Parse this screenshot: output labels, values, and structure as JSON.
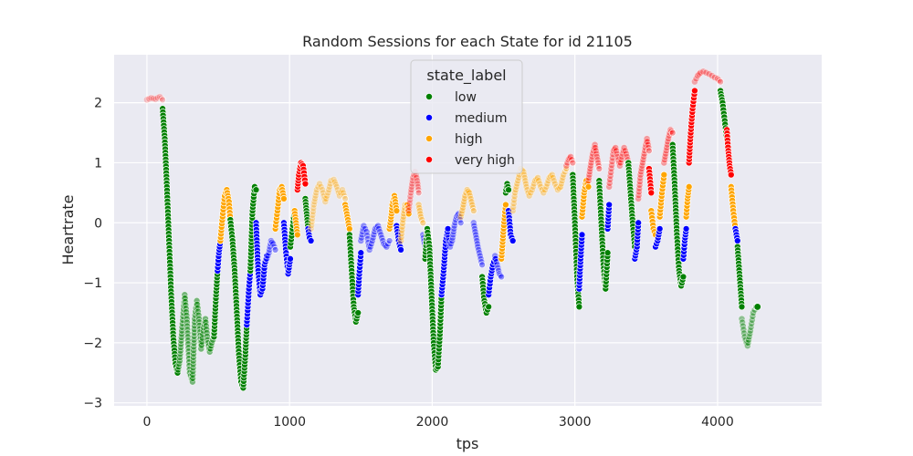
{
  "chart_data": {
    "type": "scatter",
    "title": "Random Sessions for each State for id 21105",
    "xlabel": "tps",
    "ylabel": "Heartrate",
    "xlim": [
      -230,
      4730
    ],
    "ylim": [
      -3.05,
      2.8
    ],
    "xticks": [
      0,
      1000,
      2000,
      3000,
      4000
    ],
    "yticks": [
      2,
      1,
      0,
      -1,
      -2,
      -3
    ],
    "xtick_labels": [
      "0",
      "1000",
      "2000",
      "3000",
      "4000"
    ],
    "ytick_labels": [
      "2",
      "1",
      "0",
      "−1",
      "−2",
      "−3"
    ],
    "grid": true,
    "background": "#eaeaf2",
    "legend": {
      "title": "state_label",
      "placement": "top-center",
      "entries": [
        {
          "label": "low",
          "color": "#008000"
        },
        {
          "label": "medium",
          "color": "#0000ff"
        },
        {
          "label": "high",
          "color": "#ffa500"
        },
        {
          "label": "very high",
          "color": "#ff0000"
        }
      ]
    },
    "series": [
      {
        "state": "very high",
        "alpha": 0.2,
        "x": [
          0,
          30,
          60,
          90,
          110
        ],
        "y": [
          2.05,
          2.08,
          2.06,
          2.1,
          2.05
        ]
      },
      {
        "state": "low",
        "alpha": 1,
        "x": [
          110,
          125,
          140,
          155,
          170,
          185,
          200,
          215
        ],
        "y": [
          1.9,
          1.4,
          0.6,
          -0.3,
          -1.2,
          -1.9,
          -2.35,
          -2.5
        ]
      },
      {
        "state": "low",
        "alpha": 0.5,
        "x": [
          215,
          230,
          245,
          265,
          280,
          300,
          320,
          335,
          350,
          365,
          380,
          395,
          410,
          425,
          440,
          455,
          470
        ],
        "y": [
          -2.5,
          -2.3,
          -1.8,
          -1.2,
          -1.6,
          -2.5,
          -2.65,
          -1.6,
          -1.3,
          -1.6,
          -2.1,
          -1.8,
          -1.6,
          -1.95,
          -2.15,
          -2.0,
          -1.9
        ]
      },
      {
        "state": "low",
        "alpha": 1,
        "x": [
          470,
          485,
          495
        ],
        "y": [
          -1.9,
          -1.2,
          -0.8
        ]
      },
      {
        "state": "medium",
        "alpha": 1,
        "x": [
          495,
          505,
          515
        ],
        "y": [
          -0.8,
          -0.5,
          -0.3
        ]
      },
      {
        "state": "high",
        "alpha": 1,
        "x": [
          515,
          530,
          545,
          560,
          575,
          585
        ],
        "y": [
          -0.3,
          0.1,
          0.45,
          0.55,
          0.35,
          0.05
        ]
      },
      {
        "state": "low",
        "alpha": 1,
        "x": [
          585,
          600,
          615,
          630,
          645,
          660,
          675,
          690,
          700
        ],
        "y": [
          0.05,
          -0.3,
          -0.8,
          -1.5,
          -2.2,
          -2.65,
          -2.75,
          -2.2,
          -1.7
        ]
      },
      {
        "state": "medium",
        "alpha": 1,
        "x": [
          700,
          715,
          725
        ],
        "y": [
          -1.7,
          -1.1,
          -0.8
        ]
      },
      {
        "state": "low",
        "alpha": 1,
        "x": [
          725,
          740,
          755,
          765
        ],
        "y": [
          -0.8,
          0.2,
          0.6,
          0.55
        ]
      },
      {
        "state": "medium",
        "alpha": 1,
        "x": [
          765,
          780,
          795,
          810,
          825,
          840
        ],
        "y": [
          0.0,
          -0.8,
          -1.2,
          -1.1,
          -0.7,
          -0.55
        ]
      },
      {
        "state": "medium",
        "alpha": 0.4,
        "x": [
          840,
          855,
          870,
          885,
          900
        ],
        "y": [
          -0.6,
          -0.5,
          -0.3,
          -0.35,
          -0.45
        ]
      },
      {
        "state": "high",
        "alpha": 1,
        "x": [
          900,
          915,
          930,
          945,
          960
        ],
        "y": [
          -0.1,
          0.2,
          0.55,
          0.6,
          0.4
        ]
      },
      {
        "state": "medium",
        "alpha": 1,
        "x": [
          960,
          975,
          990,
          1005
        ],
        "y": [
          0.0,
          -0.5,
          -0.85,
          -0.6
        ]
      },
      {
        "state": "low",
        "alpha": 1,
        "x": [
          1005,
          1020,
          1035
        ],
        "y": [
          -0.4,
          -0.1,
          0.2
        ]
      },
      {
        "state": "high",
        "alpha": 1,
        "x": [
          1035,
          1045,
          1055
        ],
        "y": [
          0.2,
          0.0,
          -0.2
        ]
      },
      {
        "state": "very high",
        "alpha": 1,
        "x": [
          1055,
          1065,
          1080,
          1095,
          1110
        ],
        "y": [
          0.55,
          0.8,
          1.0,
          0.95,
          0.65
        ]
      },
      {
        "state": "low",
        "alpha": 1,
        "x": [
          1110,
          1120,
          1130
        ],
        "y": [
          0.4,
          0.15,
          -0.1
        ]
      },
      {
        "state": "medium",
        "alpha": 1,
        "x": [
          1130,
          1140,
          1150
        ],
        "y": [
          -0.1,
          -0.25,
          -0.3
        ]
      },
      {
        "state": "high",
        "alpha": 0.3,
        "x": [
          1150,
          1170,
          1190,
          1210,
          1230,
          1250,
          1270,
          1290,
          1310,
          1330,
          1350,
          1370,
          1390
        ],
        "y": [
          -0.1,
          0.3,
          0.55,
          0.65,
          0.55,
          0.35,
          0.5,
          0.7,
          0.72,
          0.6,
          0.45,
          0.55,
          0.4
        ]
      },
      {
        "state": "high",
        "alpha": 1,
        "x": [
          1390,
          1405,
          1420
        ],
        "y": [
          0.3,
          0.1,
          -0.1
        ]
      },
      {
        "state": "low",
        "alpha": 1,
        "x": [
          1420,
          1435,
          1450,
          1465,
          1480
        ],
        "y": [
          -0.2,
          -0.8,
          -1.4,
          -1.65,
          -1.5
        ]
      },
      {
        "state": "medium",
        "alpha": 1,
        "x": [
          1480,
          1490,
          1500
        ],
        "y": [
          -1.2,
          -0.8,
          -0.5
        ]
      },
      {
        "state": "medium",
        "alpha": 0.4,
        "x": [
          1500,
          1520,
          1540,
          1560,
          1580,
          1600,
          1620,
          1640,
          1660,
          1680,
          1700
        ],
        "y": [
          -0.3,
          -0.05,
          -0.15,
          -0.45,
          -0.3,
          -0.1,
          -0.05,
          -0.2,
          -0.35,
          -0.4,
          -0.3
        ]
      },
      {
        "state": "high",
        "alpha": 1,
        "x": [
          1700,
          1710,
          1720,
          1735,
          1750
        ],
        "y": [
          -0.1,
          0.05,
          0.3,
          0.45,
          0.2
        ]
      },
      {
        "state": "medium",
        "alpha": 1,
        "x": [
          1750,
          1765,
          1780
        ],
        "y": [
          -0.05,
          -0.3,
          -0.45
        ]
      },
      {
        "state": "high",
        "alpha": 0.4,
        "x": [
          1780,
          1795,
          1810,
          1825
        ],
        "y": [
          -0.3,
          0.05,
          0.3,
          0.3
        ]
      },
      {
        "state": "high",
        "alpha": 1,
        "x": [
          1825,
          1835
        ],
        "y": [
          0.3,
          0.15
        ]
      },
      {
        "state": "very high",
        "alpha": 0.3,
        "x": [
          1835,
          1850,
          1865,
          1880,
          1895,
          1905
        ],
        "y": [
          0.2,
          0.5,
          0.75,
          0.85,
          0.7,
          0.5
        ]
      },
      {
        "state": "high",
        "alpha": 0.4,
        "x": [
          1905,
          1920,
          1935
        ],
        "y": [
          0.3,
          0.1,
          0.0
        ]
      },
      {
        "state": "medium",
        "alpha": 0.4,
        "x": [
          1935,
          1950
        ],
        "y": [
          -0.2,
          -0.4
        ]
      },
      {
        "state": "low",
        "alpha": 1,
        "x": [
          1950,
          1965,
          1980,
          1995,
          2010,
          2025,
          2040,
          2055,
          2065
        ],
        "y": [
          -0.6,
          -0.1,
          -0.4,
          -1.2,
          -2.0,
          -2.45,
          -2.4,
          -1.8,
          -1.2
        ]
      },
      {
        "state": "medium",
        "alpha": 1,
        "x": [
          2065,
          2080,
          2095,
          2110
        ],
        "y": [
          -1.2,
          -0.8,
          -0.3,
          -0.1
        ]
      },
      {
        "state": "medium",
        "alpha": 0.4,
        "x": [
          2110,
          2125,
          2140,
          2155,
          2170,
          2185,
          2200
        ],
        "y": [
          -0.2,
          -0.4,
          -0.3,
          -0.05,
          0.1,
          0.15,
          0.0
        ]
      },
      {
        "state": "high",
        "alpha": 0.4,
        "x": [
          2200,
          2215,
          2230,
          2245,
          2260,
          2275,
          2290
        ],
        "y": [
          0.1,
          0.25,
          0.45,
          0.55,
          0.5,
          0.35,
          0.2
        ]
      },
      {
        "state": "medium",
        "alpha": 0.4,
        "x": [
          2290,
          2305,
          2320,
          2335,
          2350
        ],
        "y": [
          0.0,
          -0.2,
          -0.4,
          -0.55,
          -0.7
        ]
      },
      {
        "state": "low",
        "alpha": 1,
        "x": [
          2350,
          2365,
          2380,
          2395
        ],
        "y": [
          -0.9,
          -1.3,
          -1.5,
          -1.4
        ]
      },
      {
        "state": "medium",
        "alpha": 1,
        "x": [
          2395,
          2410,
          2425,
          2440
        ],
        "y": [
          -1.2,
          -0.9,
          -0.7,
          -0.6
        ]
      },
      {
        "state": "medium",
        "alpha": 0.4,
        "x": [
          2440,
          2455,
          2470,
          2485
        ],
        "y": [
          -0.55,
          -0.7,
          -0.85,
          -0.9
        ]
      },
      {
        "state": "high",
        "alpha": 1,
        "x": [
          2485,
          2500,
          2515
        ],
        "y": [
          -0.6,
          -0.1,
          0.3
        ]
      },
      {
        "state": "low",
        "alpha": 1,
        "x": [
          2515,
          2525,
          2535
        ],
        "y": [
          0.5,
          0.65,
          0.55
        ]
      },
      {
        "state": "medium",
        "alpha": 1,
        "x": [
          2535,
          2550,
          2565
        ],
        "y": [
          0.2,
          -0.2,
          -0.3
        ]
      },
      {
        "state": "high",
        "alpha": 0.35,
        "x": [
          2565,
          2580,
          2600,
          2620,
          2640,
          2660,
          2680,
          2700,
          2720,
          2740,
          2760,
          2780,
          2800,
          2820,
          2840,
          2860,
          2880,
          2900,
          2920,
          2940
        ],
        "y": [
          0.2,
          0.5,
          0.7,
          0.9,
          0.85,
          0.6,
          0.45,
          0.55,
          0.7,
          0.75,
          0.6,
          0.5,
          0.6,
          0.75,
          0.8,
          0.65,
          0.55,
          0.6,
          0.8,
          0.9
        ]
      },
      {
        "state": "very high",
        "alpha": 0.35,
        "x": [
          2940,
          2955,
          2970,
          2985
        ],
        "y": [
          0.95,
          1.05,
          1.1,
          1.0
        ]
      },
      {
        "state": "low",
        "alpha": 1,
        "x": [
          2985,
          3000,
          3015,
          3030
        ],
        "y": [
          0.8,
          0.0,
          -0.9,
          -1.4
        ]
      },
      {
        "state": "medium",
        "alpha": 1,
        "x": [
          3030,
          3040,
          3050
        ],
        "y": [
          -1.1,
          -0.6,
          -0.2
        ]
      },
      {
        "state": "high",
        "alpha": 1,
        "x": [
          3050,
          3065,
          3080,
          3095
        ],
        "y": [
          0.1,
          0.5,
          0.7,
          0.6
        ]
      },
      {
        "state": "very high",
        "alpha": 0.35,
        "x": [
          3095,
          3110,
          3125,
          3140,
          3155,
          3170
        ],
        "y": [
          0.7,
          0.95,
          1.15,
          1.3,
          1.1,
          0.9
        ]
      },
      {
        "state": "low",
        "alpha": 1,
        "x": [
          3170,
          3185,
          3200,
          3215,
          3230
        ],
        "y": [
          0.7,
          0.0,
          -0.7,
          -1.1,
          -0.5
        ]
      },
      {
        "state": "medium",
        "alpha": 1,
        "x": [
          3230,
          3240
        ],
        "y": [
          -0.1,
          0.3
        ]
      },
      {
        "state": "very high",
        "alpha": 0.35,
        "x": [
          3240,
          3255,
          3270,
          3285,
          3300,
          3315,
          3330,
          3345,
          3360,
          3375
        ],
        "y": [
          0.6,
          0.9,
          1.2,
          1.25,
          1.1,
          0.95,
          1.1,
          1.25,
          1.15,
          1.0
        ]
      },
      {
        "state": "low",
        "alpha": 1,
        "x": [
          3375,
          3390,
          3405,
          3420
        ],
        "y": [
          1.0,
          0.5,
          0.0,
          -0.4
        ]
      },
      {
        "state": "medium",
        "alpha": 1,
        "x": [
          3420,
          3435,
          3445
        ],
        "y": [
          -0.6,
          -0.4,
          0.0
        ]
      },
      {
        "state": "very high",
        "alpha": 0.35,
        "x": [
          3445,
          3460,
          3475,
          3490,
          3505,
          3520
        ],
        "y": [
          0.4,
          0.8,
          1.0,
          1.2,
          1.4,
          1.2
        ]
      },
      {
        "state": "very high",
        "alpha": 1,
        "x": [
          3520,
          3535
        ],
        "y": [
          0.9,
          0.5
        ]
      },
      {
        "state": "high",
        "alpha": 1,
        "x": [
          3535,
          3550,
          3565
        ],
        "y": [
          0.2,
          -0.1,
          -0.2
        ]
      },
      {
        "state": "medium",
        "alpha": 1,
        "x": [
          3565,
          3580,
          3595
        ],
        "y": [
          -0.4,
          -0.3,
          -0.1
        ]
      },
      {
        "state": "high",
        "alpha": 1,
        "x": [
          3595,
          3610,
          3625
        ],
        "y": [
          0.1,
          0.5,
          0.8
        ]
      },
      {
        "state": "very high",
        "alpha": 0.35,
        "x": [
          3625,
          3640,
          3655,
          3670,
          3685
        ],
        "y": [
          1.0,
          1.2,
          1.4,
          1.55,
          1.5
        ]
      },
      {
        "state": "low",
        "alpha": 1,
        "x": [
          3685,
          3700,
          3715,
          3730,
          3745,
          3760
        ],
        "y": [
          1.3,
          0.6,
          -0.2,
          -0.8,
          -1.05,
          -0.9
        ]
      },
      {
        "state": "medium",
        "alpha": 1,
        "x": [
          3760,
          3770,
          3780
        ],
        "y": [
          -0.6,
          -0.3,
          -0.1
        ]
      },
      {
        "state": "high",
        "alpha": 1,
        "x": [
          3780,
          3790,
          3800
        ],
        "y": [
          0.1,
          0.4,
          0.6
        ]
      },
      {
        "state": "very high",
        "alpha": 1,
        "x": [
          3800,
          3812,
          3825,
          3840
        ],
        "y": [
          1.0,
          1.5,
          1.9,
          2.2
        ]
      },
      {
        "state": "very high",
        "alpha": 0.3,
        "x": [
          3840,
          3860,
          3880,
          3900,
          3920,
          3940,
          3960,
          3980,
          4000,
          4020
        ],
        "y": [
          2.35,
          2.45,
          2.5,
          2.52,
          2.5,
          2.48,
          2.45,
          2.42,
          2.4,
          2.35
        ]
      },
      {
        "state": "low",
        "alpha": 1,
        "x": [
          4020,
          4035,
          4050,
          4065
        ],
        "y": [
          2.2,
          2.0,
          1.7,
          1.4
        ]
      },
      {
        "state": "very high",
        "alpha": 1,
        "x": [
          4065,
          4075,
          4085,
          4095
        ],
        "y": [
          1.55,
          1.2,
          0.95,
          0.8
        ]
      },
      {
        "state": "high",
        "alpha": 1,
        "x": [
          4095,
          4110,
          4125
        ],
        "y": [
          0.6,
          0.2,
          -0.1
        ]
      },
      {
        "state": "medium",
        "alpha": 1,
        "x": [
          4125,
          4140
        ],
        "y": [
          -0.1,
          -0.3
        ]
      },
      {
        "state": "low",
        "alpha": 1,
        "x": [
          4140,
          4155,
          4170
        ],
        "y": [
          -0.4,
          -0.9,
          -1.4
        ]
      },
      {
        "state": "low",
        "alpha": 0.4,
        "x": [
          4170,
          4190,
          4210,
          4230,
          4250,
          4270
        ],
        "y": [
          -1.6,
          -1.9,
          -2.05,
          -1.8,
          -1.5,
          -1.4
        ]
      }
    ]
  }
}
